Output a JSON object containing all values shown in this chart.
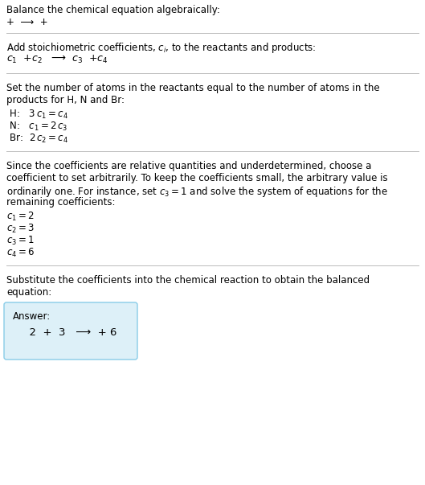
{
  "title": "Balance the chemical equation algebraically:",
  "line1": "+  ⟶  +",
  "section1_intro": "Add stoichiometric coefficients, $c_i$, to the reactants and products:",
  "section1_eq": "$c_1$  +$c_2$   ⟶  $c_3$  +$c_4$",
  "section2_intro_line1": "Set the number of atoms in the reactants equal to the number of atoms in the",
  "section2_intro_line2": "products for H, N and Br:",
  "section2_lines": [
    " H:   $3\\,c_1 = c_4$",
    " N:   $c_1 = 2\\,c_3$",
    " Br:  $2\\,c_2 = c_4$"
  ],
  "section3_intro_lines": [
    "Since the coefficients are relative quantities and underdetermined, choose a",
    "coefficient to set arbitrarily. To keep the coefficients small, the arbitrary value is",
    "ordinarily one. For instance, set $c_3 = 1$ and solve the system of equations for the",
    "remaining coefficients:"
  ],
  "section3_lines": [
    "$c_1 = 2$",
    "$c_2 = 3$",
    "$c_3 = 1$",
    "$c_4 = 6$"
  ],
  "section4_intro_line1": "Substitute the coefficients into the chemical reaction to obtain the balanced",
  "section4_intro_line2": "equation:",
  "answer_label": "Answer:",
  "answer_eq": "  2  +  3   ⟶  + 6",
  "bg_color": "#ffffff",
  "answer_box_facecolor": "#ddf0f8",
  "answer_box_edgecolor": "#88cce8",
  "text_color": "#000000",
  "divider_color": "#bbbbbb",
  "font_size": 8.5
}
